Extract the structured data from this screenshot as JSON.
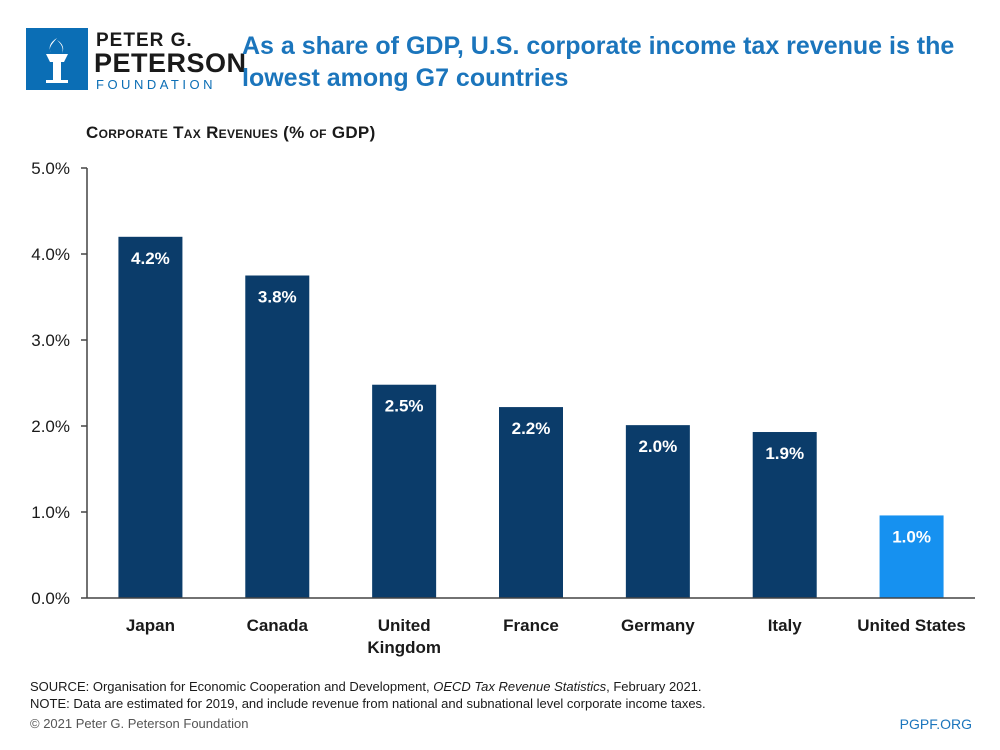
{
  "logo": {
    "line1": "PETER G.",
    "line2": "PETERSON",
    "line3": "FOUNDATION"
  },
  "headline": "As a share of GDP, U.S. corporate income tax revenue is the lowest among G7 countries",
  "footer": {
    "source_prefix": "SOURCE: Organisation for Economic Cooperation and Development, ",
    "source_title": "OECD Tax Revenue Statistics",
    "source_suffix": ", February 2021.",
    "note": "NOTE: Data are estimated for 2019, and include revenue from national and subnational level corporate income taxes.",
    "copyright": "© 2021 Peter G. Peterson Foundation",
    "site": "PGPF.ORG"
  },
  "colors": {
    "bar": "#0b3c6a",
    "highlight": "#1691f0",
    "headline": "#1b75bc"
  },
  "chart_data": {
    "type": "bar",
    "title": "Corporate Tax Revenues (% of GDP)",
    "categories": [
      [
        "Japan"
      ],
      [
        "Canada"
      ],
      [
        "United",
        "Kingdom"
      ],
      [
        "France"
      ],
      [
        "Germany"
      ],
      [
        "Italy"
      ],
      [
        "United States"
      ]
    ],
    "values": [
      4.2,
      3.75,
      2.48,
      2.22,
      2.01,
      1.93,
      0.96
    ],
    "data_labels": [
      "4.2%",
      "3.8%",
      "2.5%",
      "2.2%",
      "2.0%",
      "1.9%",
      "1.0%"
    ],
    "highlight_index": 6,
    "ylim": [
      0,
      5
    ],
    "yticks": [
      0,
      1,
      2,
      3,
      4,
      5
    ],
    "ytick_labels": [
      "0.0%",
      "1.0%",
      "2.0%",
      "3.0%",
      "4.0%",
      "5.0%"
    ],
    "grid": false
  }
}
